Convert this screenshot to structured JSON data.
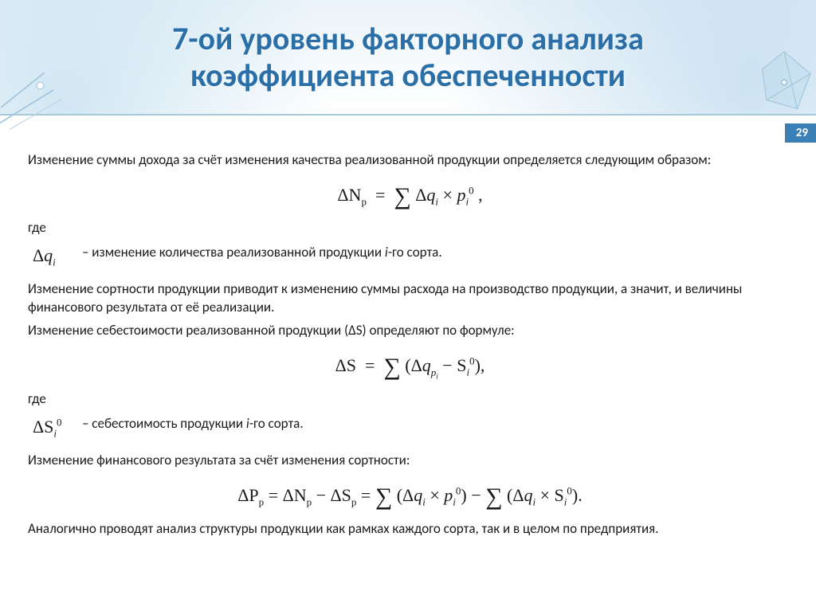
{
  "header": {
    "title_line1": "7-ой уровень факторного анализа",
    "title_line2": "коэффициента обеспеченности",
    "title_color": "#2a6fa8",
    "bg_gradient_top": "#eaf3f9",
    "border_color": "#a8c8dc"
  },
  "page_number": "29",
  "badge_bg": "#3a7fb5",
  "body": {
    "p1": "Изменение суммы дохода за счёт изменения качества реализованной продукции определяется следующим образом:",
    "formula1_html": "ΔN<span class='sub'>p</span> &nbsp;=&nbsp; <span class='sum'>∑</span> Δ<span class='italic'>q</span><span class='sub italic'>i</span> × <span class='italic'>p</span><span class='sub italic'>i</span><span class='sup'>0</span> ,",
    "where1_label": "где",
    "where1_sym_html": "Δ<span class='italic'>q</span><span class='sub italic'>i</span>",
    "where1_text_html": "– изменение количества реализованной продукции <span class='italic'>i</span>-го сорта.",
    "p2": "Изменение сортности продукции приводит к изменению суммы расхода на производство продукции, а значит, и величины финансового результата от её реализации.",
    "p3": "Изменение себестоимости реализованной продукции (ΔS) определяют по формуле:",
    "formula2_html": "ΔS &nbsp;=&nbsp; <span class='sum'>∑</span> (Δ<span class='italic'>q</span><span class='sub italic'>p<sub style=\"font-size:9px\">i</sub></span> − S<span class='sub italic'>i</span><span class='sup'>0</span>),",
    "where2_label": "где",
    "where2_sym_html": "ΔS<span class='sub italic'>i</span><span class='sup'>0</span>",
    "where2_text_html": "– себестоимость продукции <span class='italic'>i</span>-го сорта.",
    "p4": "Изменение финансового результата за счёт изменения сортности:",
    "formula3_html": "ΔP<span class='sub'>p</span> = ΔN<span class='sub'>p</span> − ΔS<span class='sub'>p</span> = <span class='sum'>∑</span> (Δ<span class='italic'>q</span><span class='sub italic'>i</span> × <span class='italic'>p</span><span class='sub italic'>i</span><span class='sup'>0</span>) − <span class='sum'>∑</span> (Δ<span class='italic'>q</span><span class='sub italic'>i</span> × S<span class='sub italic'>i</span><span class='sup'>0</span>).",
    "p5": "Аналогично проводят анализ структуры продукции как рамках каждого сорта, так и в целом по предприятия."
  },
  "fonts": {
    "body_family": "Calibri, Arial, sans-serif",
    "formula_family": "Times New Roman, serif",
    "title_size_pt": 40,
    "body_size_pt": 17,
    "formula_size_pt": 22
  }
}
